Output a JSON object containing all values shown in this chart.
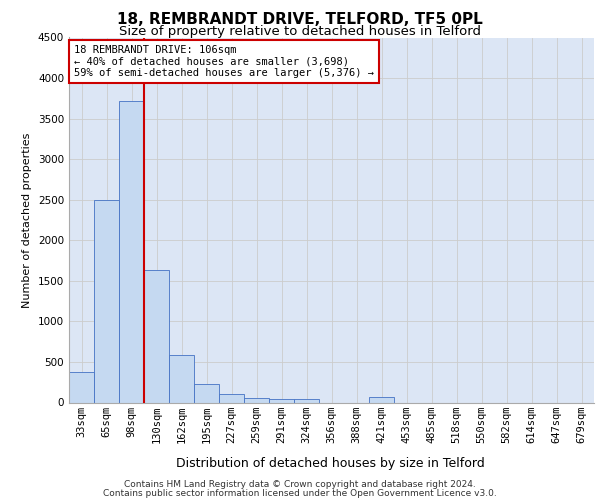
{
  "title_line1": "18, REMBRANDT DRIVE, TELFORD, TF5 0PL",
  "title_line2": "Size of property relative to detached houses in Telford",
  "xlabel": "Distribution of detached houses by size in Telford",
  "ylabel": "Number of detached properties",
  "footer_line1": "Contains HM Land Registry data © Crown copyright and database right 2024.",
  "footer_line2": "Contains public sector information licensed under the Open Government Licence v3.0.",
  "categories": [
    "33sqm",
    "65sqm",
    "98sqm",
    "130sqm",
    "162sqm",
    "195sqm",
    "227sqm",
    "259sqm",
    "291sqm",
    "324sqm",
    "356sqm",
    "388sqm",
    "421sqm",
    "453sqm",
    "485sqm",
    "518sqm",
    "550sqm",
    "582sqm",
    "614sqm",
    "647sqm",
    "679sqm"
  ],
  "values": [
    370,
    2500,
    3720,
    1630,
    590,
    225,
    105,
    60,
    40,
    40,
    0,
    0,
    65,
    0,
    0,
    0,
    0,
    0,
    0,
    0,
    0
  ],
  "bar_color": "#c5d9f1",
  "bar_edge_color": "#4472c4",
  "ylim": [
    0,
    4500
  ],
  "yticks": [
    0,
    500,
    1000,
    1500,
    2000,
    2500,
    3000,
    3500,
    4000,
    4500
  ],
  "annotation_line1": "18 REMBRANDT DRIVE: 106sqm",
  "annotation_line2": "← 40% of detached houses are smaller (3,698)",
  "annotation_line3": "59% of semi-detached houses are larger (5,376) →",
  "vline_x_index": 2.5,
  "vline_color": "#cc0000",
  "annotation_box_color": "#ffffff",
  "annotation_box_edge_color": "#cc0000",
  "grid_color": "#cccccc",
  "background_color": "#dce6f5",
  "title_fontsize": 11,
  "subtitle_fontsize": 9.5,
  "ylabel_fontsize": 8,
  "xlabel_fontsize": 9,
  "tick_fontsize": 7.5,
  "footer_fontsize": 6.5,
  "annot_fontsize": 7.5
}
